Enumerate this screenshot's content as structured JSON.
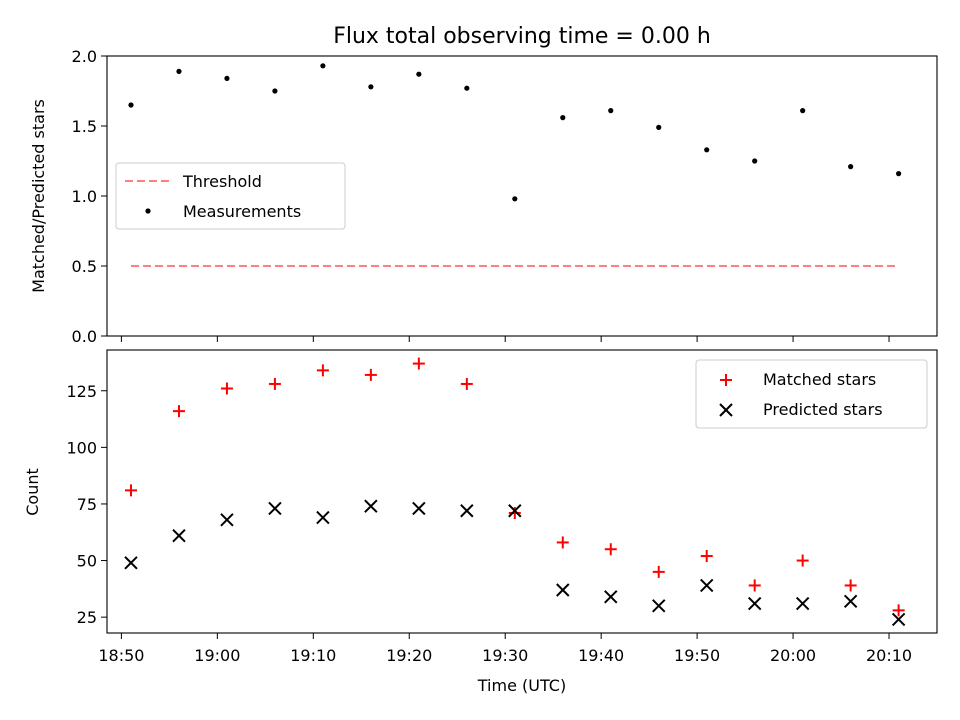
{
  "title": "Flux total observing time = 0.00 h",
  "chart_data": [
    {
      "type": "scatter",
      "ylabel": "Matched/Predicted stars",
      "xlabel": "",
      "xlim_min": [
        1128.5,
        1215
      ],
      "ylim": [
        0,
        2.0
      ],
      "yticks": [
        0,
        0.5,
        1.0,
        1.5,
        2.0
      ],
      "ytick_labels": [
        "0.0",
        "0.5",
        "1.0",
        "1.5",
        "2.0"
      ],
      "legend_position": "center-left",
      "threshold": {
        "name": "Threshold",
        "value": 0.5,
        "x_range_min": [
          1131,
          1211
        ],
        "color": "#ff7f7f"
      },
      "series": [
        {
          "name": "Measurements",
          "color": "#000000",
          "marker": "dot",
          "x_min": [
            1131,
            1136,
            1141,
            1146,
            1151,
            1156,
            1161,
            1166,
            1171,
            1176,
            1181,
            1186,
            1191,
            1196,
            1201,
            1206,
            1211
          ],
          "values": [
            1.65,
            1.89,
            1.84,
            1.75,
            1.93,
            1.78,
            1.87,
            1.77,
            0.98,
            1.56,
            1.61,
            1.49,
            1.33,
            1.25,
            1.61,
            1.21,
            1.16
          ]
        }
      ]
    },
    {
      "type": "scatter",
      "ylabel": "Count",
      "xlabel": "Time (UTC)",
      "xlim_min": [
        1128.5,
        1215
      ],
      "ylim": [
        18,
        143
      ],
      "yticks": [
        25,
        50,
        75,
        100,
        125
      ],
      "ytick_labels": [
        "25",
        "50",
        "75",
        "100",
        "125"
      ],
      "xticks_min": [
        1130,
        1140,
        1150,
        1160,
        1170,
        1180,
        1190,
        1200,
        1210
      ],
      "xtick_labels": [
        "18:50",
        "19:00",
        "19:10",
        "19:20",
        "19:30",
        "19:40",
        "19:50",
        "20:00",
        "20:10"
      ],
      "legend_position": "top-right",
      "series": [
        {
          "name": "Matched stars",
          "color": "#ff0000",
          "marker": "plus",
          "x_min": [
            1131,
            1136,
            1141,
            1146,
            1151,
            1156,
            1161,
            1166,
            1171,
            1176,
            1181,
            1186,
            1191,
            1196,
            1201,
            1206,
            1211
          ],
          "values": [
            81,
            116,
            126,
            128,
            134,
            132,
            137,
            128,
            71,
            58,
            55,
            45,
            52,
            39,
            50,
            39,
            28
          ]
        },
        {
          "name": "Predicted stars",
          "color": "#000000",
          "marker": "x",
          "x_min": [
            1131,
            1136,
            1141,
            1146,
            1151,
            1156,
            1161,
            1166,
            1171,
            1176,
            1181,
            1186,
            1191,
            1196,
            1201,
            1206,
            1211
          ],
          "values": [
            49,
            61,
            68,
            73,
            69,
            74,
            73,
            72,
            72,
            37,
            34,
            30,
            39,
            31,
            31,
            32,
            24
          ]
        }
      ]
    }
  ]
}
